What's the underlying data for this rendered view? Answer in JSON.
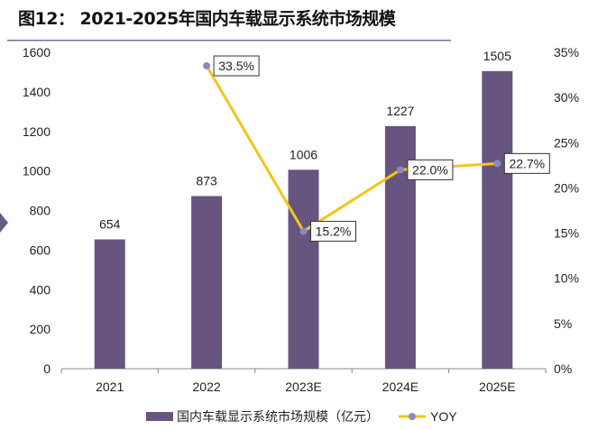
{
  "title": "图12： 2021-2025年国内车载显示系统市场规模",
  "chart_data": {
    "type": "bar+line",
    "title": "图12： 2021-2025年国内车载显示系统市场规模",
    "categories": [
      "2021",
      "2022",
      "2023E",
      "2024E",
      "2025E"
    ],
    "series": [
      {
        "name": "国内车载显示系统市场规模（亿元）",
        "type": "bar",
        "axis": "left",
        "color": "#67557f",
        "values": [
          654,
          873,
          1006,
          1227,
          1505
        ],
        "labels": [
          "654",
          "873",
          "1006",
          "1227",
          "1505"
        ]
      },
      {
        "name": "YOY",
        "type": "line",
        "axis": "right",
        "color": "#f5c518",
        "marker_color": "#8f87c4",
        "values": [
          null,
          33.5,
          15.2,
          22.0,
          22.7
        ],
        "labels": [
          "",
          "33.5%",
          "15.2%",
          "22.0%",
          "22.7%"
        ]
      }
    ],
    "y_left": {
      "range": [
        0,
        1600
      ],
      "ticks": [
        "0",
        "200",
        "400",
        "600",
        "800",
        "1000",
        "1200",
        "1400",
        "1600"
      ]
    },
    "y_right": {
      "range": [
        0,
        35
      ],
      "ticks": [
        "0%",
        "5%",
        "10%",
        "15%",
        "20%",
        "25%",
        "30%",
        "35%"
      ]
    },
    "grid": false,
    "legend": "bottom"
  }
}
